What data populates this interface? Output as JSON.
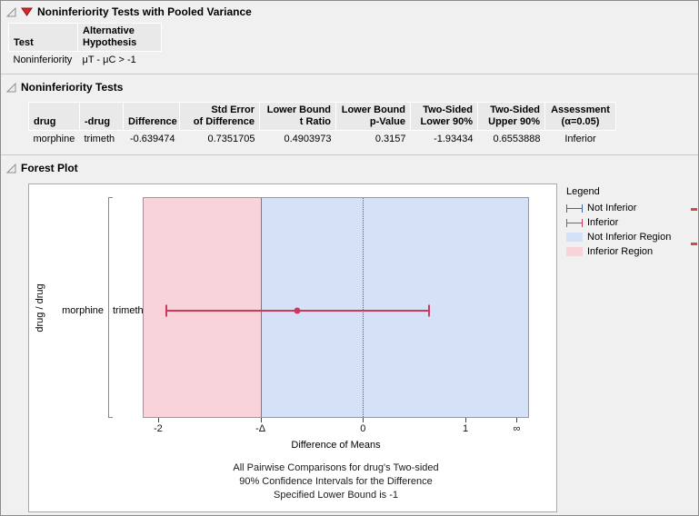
{
  "sections": {
    "pooled": {
      "title": "Noninferiority Tests with Pooled Variance",
      "table": {
        "col_test": "Test",
        "col_alt": "Alternative\nHypothesis",
        "row_test": "Noninferiority",
        "row_alt": "μT - μC > -1"
      }
    },
    "tests": {
      "title": "Noninferiority Tests",
      "table": {
        "headers": [
          "drug",
          "-drug",
          "Difference",
          "Std Error\nof Difference",
          "Lower Bound\nt Ratio",
          "Lower Bound\np-Value",
          "Two-Sided\nLower 90%",
          "Two-Sided\nUpper 90%",
          "Assessment\n(α=0.05)"
        ],
        "row": [
          "morphine",
          "trimeth",
          "-0.639474",
          "0.7351705",
          "0.4903973",
          "0.3157",
          "-1.93434",
          "0.6553888",
          "Inferior"
        ]
      }
    },
    "forest": {
      "title": "Forest Plot"
    }
  },
  "chart_data": {
    "type": "forest",
    "xlabel": "Difference of Means",
    "ylabel": "drug / drug",
    "row_label": {
      "group": "morphine",
      "vs": "trimeth"
    },
    "axis": {
      "min": -2.15,
      "max": 1.62
    },
    "ticks": [
      {
        "label": "-2",
        "x": -2
      },
      {
        "label": "-Δ",
        "x": -1
      },
      {
        "label": "0",
        "x": 0
      },
      {
        "label": "1",
        "x": 1
      },
      {
        "label": "∞",
        "x": 1.5
      }
    ],
    "noninferiority_bound": -1,
    "reference_line": 0,
    "series": [
      {
        "group": "morphine",
        "vs": "trimeth",
        "estimate": -0.639474,
        "lower": -1.93434,
        "upper": 0.6553888,
        "assessment": "Inferior"
      }
    ],
    "colors": {
      "inferior_ci": "#d03a5a",
      "not_inferior_ci": "#3a66b0",
      "inferior_region": "#f8d3da",
      "not_inferior_region": "#d4e1f6",
      "reference_line": "#3b63c4"
    },
    "caption": [
      "All Pairwise Comparisons for drug's Two-sided",
      "90% Confidence Intervals for the Difference",
      "Specified Lower Bound is -1"
    ]
  },
  "legend": {
    "title": "Legend",
    "items": [
      {
        "label": "Not Inferior",
        "type": "ci",
        "color": "#3a66b0",
        "icon": "not-inferior-ci-icon"
      },
      {
        "label": "Inferior",
        "type": "ci",
        "color": "#d03a5a",
        "icon": "inferior-ci-icon"
      },
      {
        "label": "Not Inferior Region",
        "type": "region",
        "color": "#d4e1f6",
        "icon": "not-inferior-region-swatch"
      },
      {
        "label": "Inferior Region",
        "type": "region",
        "color": "#f8d3da",
        "icon": "inferior-region-swatch"
      }
    ]
  }
}
